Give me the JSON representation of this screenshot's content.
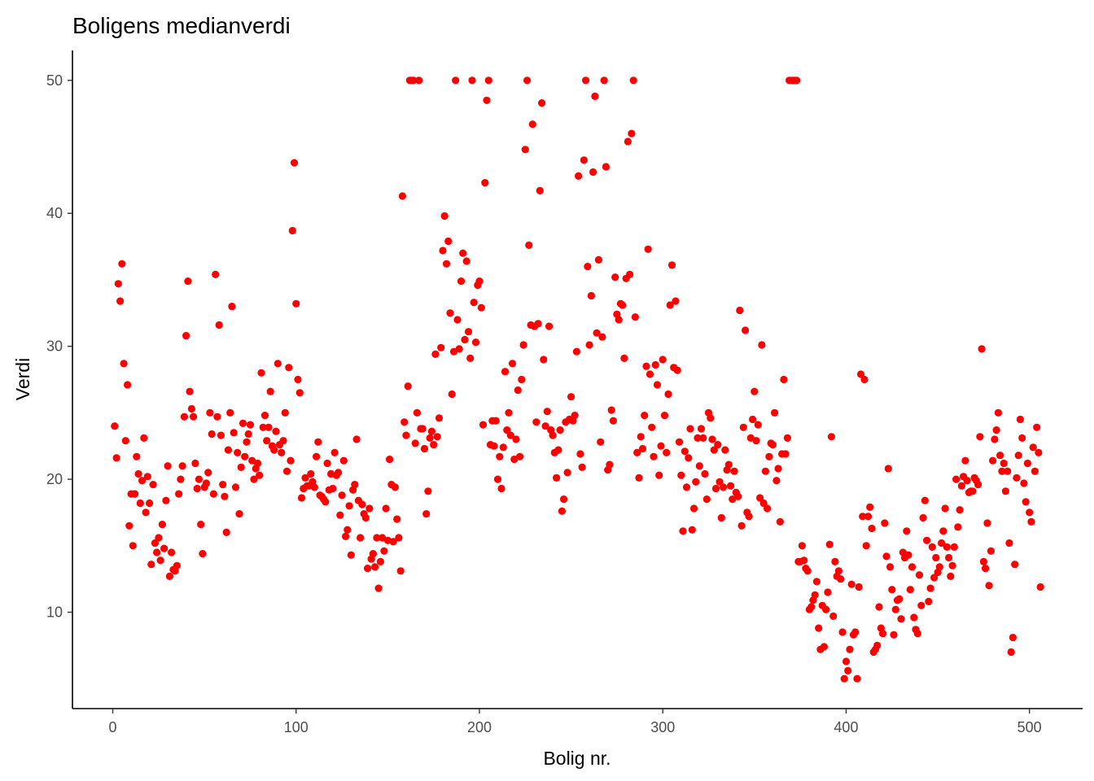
{
  "chart_data": {
    "type": "scatter",
    "title": "Boligens medianverdi",
    "xlabel": "Bolig nr.",
    "ylabel": "Verdi",
    "xlim": [
      -22,
      529
    ],
    "ylim": [
      2.75,
      52.25
    ],
    "x_ticks": [
      0,
      100,
      200,
      300,
      400,
      500
    ],
    "y_ticks": [
      10,
      20,
      30,
      40,
      50
    ],
    "grid": false,
    "point_color": "#FF0000",
    "x": [
      1,
      2,
      3,
      4,
      5,
      6,
      7,
      8,
      9,
      10,
      11,
      12,
      13,
      14,
      15,
      16,
      17,
      18,
      19,
      20,
      21,
      22,
      23,
      24,
      25,
      26,
      27,
      28,
      29,
      30,
      31,
      32,
      33,
      34,
      35,
      36,
      37,
      38,
      39,
      40,
      41,
      42,
      43,
      44,
      45,
      46,
      47,
      48,
      49,
      50,
      51,
      52,
      53,
      54,
      55,
      56,
      57,
      58,
      59,
      60,
      61,
      62,
      63,
      64,
      65,
      66,
      67,
      68,
      69,
      70,
      71,
      72,
      73,
      74,
      75,
      76,
      77,
      78,
      79,
      80,
      81,
      82,
      83,
      84,
      85,
      86,
      87,
      88,
      89,
      90,
      91,
      92,
      93,
      94,
      95,
      96,
      97,
      98,
      99,
      100,
      101,
      102,
      103,
      104,
      105,
      106,
      107,
      108,
      109,
      110,
      111,
      112,
      113,
      114,
      115,
      116,
      117,
      118,
      119,
      120,
      121,
      122,
      123,
      124,
      125,
      126,
      127,
      128,
      129,
      130,
      131,
      132,
      133,
      134,
      135,
      136,
      137,
      138,
      139,
      140,
      141,
      142,
      143,
      144,
      145,
      146,
      147,
      148,
      149,
      150,
      151,
      152,
      153,
      154,
      155,
      156,
      157,
      158,
      159,
      160,
      161,
      162,
      163,
      164,
      165,
      166,
      167,
      168,
      169,
      170,
      171,
      172,
      173,
      174,
      175,
      176,
      177,
      178,
      179,
      180,
      181,
      182,
      183,
      184,
      185,
      186,
      187,
      188,
      189,
      190,
      191,
      192,
      193,
      194,
      195,
      196,
      197,
      198,
      199,
      200,
      201,
      202,
      203,
      204,
      205,
      206,
      207,
      208,
      209,
      210,
      211,
      212,
      213,
      214,
      215,
      216,
      217,
      218,
      219,
      220,
      221,
      222,
      223,
      224,
      225,
      226,
      227,
      228,
      229,
      230,
      231,
      232,
      233,
      234,
      235,
      236,
      237,
      238,
      239,
      240,
      241,
      242,
      243,
      244,
      245,
      246,
      247,
      248,
      249,
      250,
      251,
      252,
      253,
      254,
      255,
      256,
      257,
      258,
      259,
      260,
      261,
      262,
      263,
      264,
      265,
      266,
      267,
      268,
      269,
      270,
      271,
      272,
      273,
      274,
      275,
      276,
      277,
      278,
      279,
      280,
      281,
      282,
      283,
      284,
      285,
      286,
      287,
      288,
      289,
      290,
      291,
      292,
      293,
      294,
      295,
      296,
      297,
      298,
      299,
      300,
      301,
      302,
      303,
      304,
      305,
      306,
      307,
      308,
      309,
      310,
      311,
      312,
      313,
      314,
      315,
      316,
      317,
      318,
      319,
      320,
      321,
      322,
      323,
      324,
      325,
      326,
      327,
      328,
      329,
      330,
      331,
      332,
      333,
      334,
      335,
      336,
      337,
      338,
      339,
      340,
      341,
      342,
      343,
      344,
      345,
      346,
      347,
      348,
      349,
      350,
      351,
      352,
      353,
      354,
      355,
      356,
      357,
      358,
      359,
      360,
      361,
      362,
      363,
      364,
      365,
      366,
      367,
      368,
      369,
      370,
      371,
      372,
      373,
      374,
      375,
      376,
      377,
      378,
      379,
      380,
      381,
      382,
      383,
      384,
      385,
      386,
      387,
      388,
      389,
      390,
      391,
      392,
      393,
      394,
      395,
      396,
      397,
      398,
      399,
      400,
      401,
      402,
      403,
      404,
      405,
      406,
      407,
      408,
      409,
      410,
      411,
      412,
      413,
      414,
      415,
      416,
      417,
      418,
      419,
      420,
      421,
      422,
      423,
      424,
      425,
      426,
      427,
      428,
      429,
      430,
      431,
      432,
      433,
      434,
      435,
      436,
      437,
      438,
      439,
      440,
      441,
      442,
      443,
      444,
      445,
      446,
      447,
      448,
      449,
      450,
      451,
      452,
      453,
      454,
      455,
      456,
      457,
      458,
      459,
      460,
      461,
      462,
      463,
      464,
      465,
      466,
      467,
      468,
      469,
      470,
      471,
      472,
      473,
      474,
      475,
      476,
      477,
      478,
      479,
      480,
      481,
      482,
      483,
      484,
      485,
      486,
      487,
      488,
      489,
      490,
      491,
      492,
      493,
      494,
      495,
      496,
      497,
      498,
      499,
      500,
      501,
      502,
      503,
      504,
      505,
      506
    ],
    "y": [
      24.0,
      21.6,
      34.7,
      33.4,
      36.2,
      28.7,
      22.9,
      27.1,
      16.5,
      18.9,
      15.0,
      18.9,
      21.7,
      20.4,
      18.2,
      19.9,
      23.1,
      17.5,
      20.2,
      18.2,
      13.6,
      19.6,
      15.2,
      14.5,
      15.6,
      13.9,
      16.6,
      14.8,
      18.4,
      21.0,
      12.7,
      14.5,
      13.2,
      13.1,
      13.5,
      18.9,
      20.0,
      21.0,
      24.7,
      30.8,
      34.9,
      26.6,
      25.3,
      24.7,
      21.2,
      19.3,
      20.0,
      16.6,
      14.4,
      19.4,
      19.7,
      20.5,
      25.0,
      23.4,
      18.9,
      35.4,
      24.7,
      31.6,
      23.3,
      19.6,
      18.7,
      16.0,
      22.2,
      25.0,
      33.0,
      23.5,
      19.4,
      22.0,
      17.4,
      20.9,
      24.2,
      21.7,
      22.8,
      23.4,
      24.1,
      21.4,
      20.0,
      20.8,
      21.2,
      20.3,
      28.0,
      23.9,
      24.8,
      22.9,
      23.9,
      26.6,
      22.5,
      22.2,
      23.6,
      28.7,
      22.6,
      22.0,
      22.9,
      25.0,
      20.6,
      28.4,
      21.4,
      38.7,
      43.8,
      33.2,
      27.5,
      26.5,
      18.6,
      19.3,
      20.1,
      19.5,
      19.5,
      20.4,
      19.8,
      19.4,
      21.7,
      22.8,
      18.8,
      18.7,
      18.5,
      18.3,
      21.2,
      19.2,
      20.4,
      19.3,
      22.0,
      20.3,
      20.5,
      17.3,
      18.8,
      21.4,
      15.7,
      16.2,
      18.0,
      14.3,
      19.2,
      19.6,
      23.0,
      18.4,
      15.6,
      18.1,
      17.4,
      17.1,
      13.3,
      17.8,
      14.0,
      14.4,
      13.4,
      15.6,
      11.8,
      13.8,
      15.6,
      14.6,
      17.8,
      15.4,
      21.5,
      19.6,
      15.3,
      19.4,
      17.0,
      15.6,
      13.1,
      41.3,
      24.3,
      23.3,
      27.0,
      50.0,
      50.0,
      50.0,
      22.7,
      25.0,
      50.0,
      23.8,
      23.8,
      22.3,
      17.4,
      19.1,
      23.1,
      23.6,
      22.6,
      29.4,
      23.2,
      24.6,
      29.9,
      37.2,
      39.8,
      36.2,
      37.9,
      32.5,
      26.4,
      29.6,
      50.0,
      32.0,
      29.8,
      34.9,
      37.0,
      30.5,
      36.4,
      31.1,
      29.1,
      50.0,
      33.3,
      30.3,
      34.6,
      34.9,
      32.9,
      24.1,
      42.3,
      48.5,
      50.0,
      22.6,
      24.4,
      22.5,
      24.4,
      20.0,
      21.7,
      19.3,
      22.4,
      28.1,
      23.7,
      25.0,
      23.3,
      28.7,
      21.5,
      23.0,
      26.7,
      21.7,
      27.5,
      30.1,
      44.8,
      50.0,
      37.6,
      31.6,
      46.7,
      31.5,
      24.3,
      31.7,
      41.7,
      48.3,
      29.0,
      24.0,
      25.1,
      31.5,
      23.7,
      23.3,
      22.0,
      20.1,
      22.2,
      23.7,
      17.6,
      18.5,
      24.3,
      20.5,
      24.5,
      26.2,
      24.4,
      24.8,
      29.6,
      42.8,
      21.9,
      20.9,
      44.0,
      50.0,
      36.0,
      30.1,
      33.8,
      43.1,
      48.8,
      31.0,
      36.5,
      22.8,
      30.7,
      50.0,
      43.5,
      20.7,
      21.1,
      25.2,
      24.4,
      35.2,
      32.4,
      32.0,
      33.2,
      33.1,
      29.1,
      35.1,
      45.4,
      35.4,
      46.0,
      50.0,
      32.2,
      22.0,
      20.1,
      23.2,
      22.3,
      24.8,
      28.5,
      37.3,
      27.9,
      23.9,
      21.7,
      28.6,
      27.1,
      20.3,
      22.5,
      29.0,
      24.8,
      22.0,
      26.4,
      33.1,
      36.1,
      28.4,
      33.4,
      28.2,
      22.8,
      20.3,
      16.1,
      22.1,
      19.4,
      21.6,
      23.8,
      16.2,
      17.8,
      19.8,
      23.1,
      21.0,
      23.8,
      23.1,
      20.4,
      18.5,
      25.0,
      24.6,
      23.0,
      22.2,
      19.3,
      22.6,
      19.8,
      17.1,
      19.4,
      22.2,
      20.7,
      21.1,
      19.5,
      18.5,
      20.6,
      19.0,
      18.7,
      32.7,
      16.5,
      23.9,
      31.2,
      17.5,
      17.2,
      23.1,
      24.5,
      26.6,
      22.9,
      24.1,
      18.6,
      30.1,
      18.2,
      20.6,
      17.8,
      21.7,
      22.7,
      22.6,
      25.0,
      19.9,
      20.8,
      16.8,
      21.9,
      27.5,
      21.9,
      23.1,
      50.0,
      50.0,
      50.0,
      50.0,
      50.0,
      13.8,
      13.8,
      15.0,
      13.9,
      13.3,
      13.1,
      10.2,
      10.4,
      10.9,
      11.3,
      12.3,
      8.8,
      7.2,
      10.5,
      7.4,
      10.2,
      11.5,
      15.1,
      23.2,
      9.7,
      13.8,
      12.7,
      13.1,
      12.5,
      8.5,
      5.0,
      6.3,
      5.6,
      7.2,
      12.1,
      8.3,
      8.5,
      5.0,
      11.9,
      27.9,
      17.2,
      27.5,
      15.0,
      17.2,
      17.9,
      16.3,
      7.0,
      7.2,
      7.5,
      10.4,
      8.8,
      8.4,
      16.7,
      14.2,
      20.8,
      13.4,
      11.7,
      8.3,
      10.2,
      10.9,
      11.0,
      9.5,
      14.5,
      14.1,
      16.1,
      14.3,
      11.7,
      13.4,
      9.6,
      8.7,
      8.4,
      12.8,
      10.5,
      17.1,
      18.4,
      15.4,
      10.8,
      11.8,
      14.9,
      12.6,
      14.1,
      13.0,
      13.4,
      15.2,
      16.1,
      17.8,
      14.9,
      14.1,
      12.7,
      13.5,
      14.9,
      20.0,
      16.4,
      17.7,
      19.5,
      20.2,
      21.4,
      19.9,
      19.0,
      19.1,
      19.1,
      20.1,
      19.9,
      19.6,
      23.2,
      29.8,
      13.8,
      13.3,
      16.7,
      12.0,
      14.6,
      21.4,
      23.0,
      23.7,
      25.0,
      21.8,
      20.6,
      21.2,
      19.1,
      20.6,
      15.2,
      7.0,
      8.1,
      13.6,
      20.1,
      21.8,
      24.5,
      23.1,
      19.7,
      18.3,
      21.2,
      17.5,
      16.8,
      22.4,
      20.6,
      23.9,
      22.0,
      11.9
    ]
  }
}
